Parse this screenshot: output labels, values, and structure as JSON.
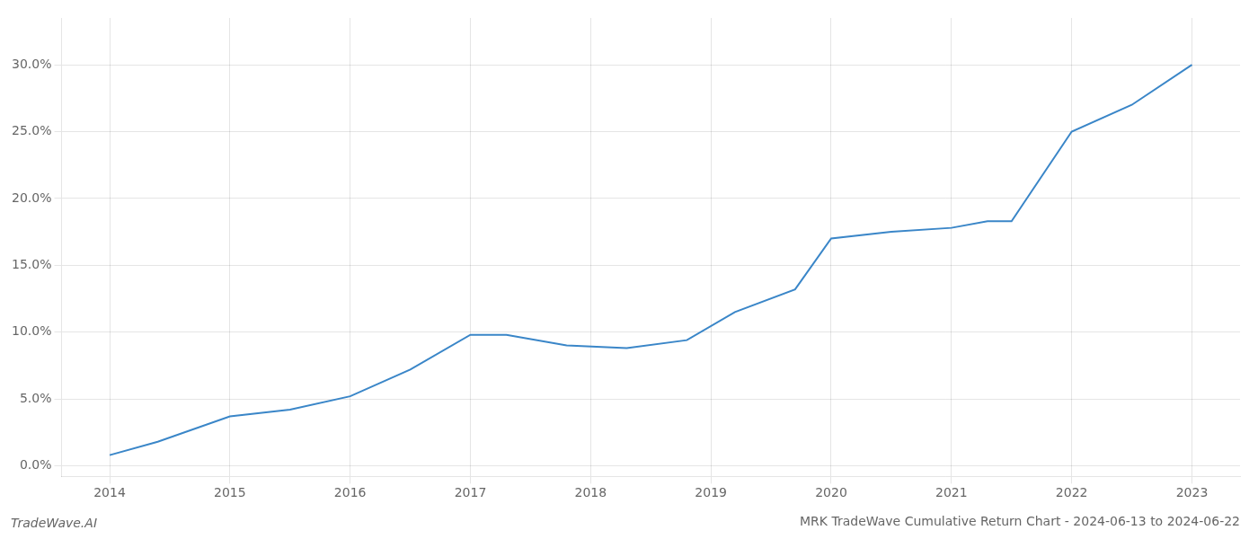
{
  "chart_data": {
    "type": "line",
    "title": "MRK TradeWave Cumulative Return Chart - 2024-06-13 to 2024-06-22",
    "annotations": [
      "TradeWave.AI"
    ],
    "color": "#3a86c8",
    "x": [
      2014.0,
      2014.4,
      2015.0,
      2015.5,
      2016.0,
      2016.5,
      2017.0,
      2017.3,
      2017.8,
      2018.3,
      2018.8,
      2019.2,
      2019.7,
      2020.0,
      2020.5,
      2021.0,
      2021.3,
      2021.5,
      2022.0,
      2022.5,
      2023.0
    ],
    "values": [
      0.008,
      0.018,
      0.037,
      0.042,
      0.052,
      0.072,
      0.098,
      0.098,
      0.09,
      0.088,
      0.094,
      0.115,
      0.132,
      0.17,
      0.175,
      0.178,
      0.183,
      0.183,
      0.25,
      0.27,
      0.3
    ],
    "xlim": [
      2013.6,
      2023.4
    ],
    "ylim": [
      -0.008,
      0.335
    ],
    "xticks": [
      2014,
      2015,
      2016,
      2017,
      2018,
      2019,
      2020,
      2021,
      2022,
      2023
    ],
    "yticks": [
      {
        "value": 0.0,
        "label": "0.0%"
      },
      {
        "value": 0.05,
        "label": "5.0%"
      },
      {
        "value": 0.1,
        "label": "10.0%"
      },
      {
        "value": 0.15,
        "label": "15.0%"
      },
      {
        "value": 0.2,
        "label": "20.0%"
      },
      {
        "value": 0.25,
        "label": "25.0%"
      },
      {
        "value": 0.3,
        "label": "30.0%"
      }
    ],
    "grid": true
  }
}
